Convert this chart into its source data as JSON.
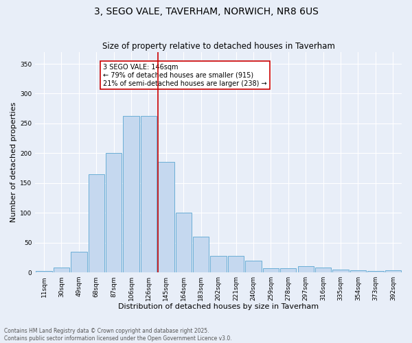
{
  "title": "3, SEGO VALE, TAVERHAM, NORWICH, NR8 6US",
  "subtitle": "Size of property relative to detached houses in Taverham",
  "xlabel": "Distribution of detached houses by size in Taverham",
  "ylabel": "Number of detached properties",
  "bar_labels": [
    "11sqm",
    "30sqm",
    "49sqm",
    "68sqm",
    "87sqm",
    "106sqm",
    "126sqm",
    "145sqm",
    "164sqm",
    "183sqm",
    "202sqm",
    "221sqm",
    "240sqm",
    "259sqm",
    "278sqm",
    "297sqm",
    "316sqm",
    "335sqm",
    "354sqm",
    "373sqm",
    "392sqm"
  ],
  "bar_heights": [
    2,
    8,
    35,
    165,
    200,
    263,
    263,
    185,
    100,
    60,
    28,
    28,
    20,
    7,
    7,
    10,
    8,
    5,
    3,
    2,
    3
  ],
  "bar_color": "#c5d8ef",
  "bar_edge_color": "#6aaed6",
  "background_color": "#e8eef8",
  "vline_color": "#cc0000",
  "annotation_text": "3 SEGO VALE: 146sqm\n← 79% of detached houses are smaller (915)\n21% of semi-detached houses are larger (238) →",
  "annotation_box_facecolor": "#ffffff",
  "annotation_box_edgecolor": "#cc0000",
  "ylim": [
    0,
    370
  ],
  "yticks": [
    0,
    50,
    100,
    150,
    200,
    250,
    300,
    350
  ],
  "footer": "Contains HM Land Registry data © Crown copyright and database right 2025.\nContains public sector information licensed under the Open Government Licence v3.0.",
  "title_fontsize": 10,
  "subtitle_fontsize": 8.5,
  "xlabel_fontsize": 8,
  "ylabel_fontsize": 8,
  "tick_fontsize": 6.5,
  "annotation_fontsize": 7,
  "footer_fontsize": 5.5,
  "vline_index": 7
}
